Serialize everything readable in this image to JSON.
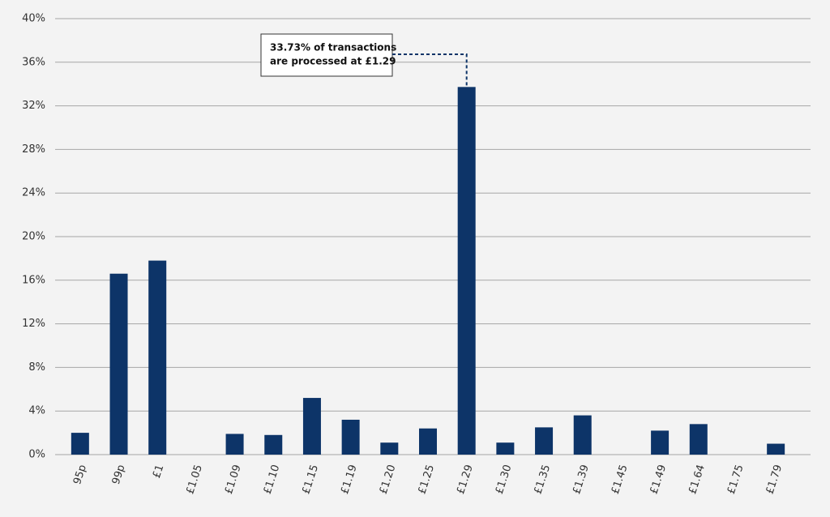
{
  "chart_data": {
    "type": "bar",
    "categories": [
      "95p",
      "99p",
      "£1",
      "£1.05",
      "£1.09",
      "£1.10",
      "£1.15",
      "£1.19",
      "£1.20",
      "£1.25",
      "£1.29",
      "£1.30",
      "£1.35",
      "£1.39",
      "£1.45",
      "£1.49",
      "£1.64",
      "£1.75",
      "£1.79"
    ],
    "values": [
      2.0,
      16.6,
      17.8,
      0,
      1.9,
      1.8,
      5.2,
      3.2,
      1.1,
      2.4,
      33.73,
      1.1,
      2.5,
      3.6,
      0,
      2.2,
      2.8,
      0,
      1.0
    ],
    "color": "#0d3468",
    "ylim": [
      0,
      40
    ],
    "yticks": [
      {
        "value": 0,
        "label": "0%"
      },
      {
        "value": 4,
        "label": "4%"
      },
      {
        "value": 8,
        "label": "8%"
      },
      {
        "value": 12,
        "label": "12%"
      },
      {
        "value": 16,
        "label": "16%"
      },
      {
        "value": 20,
        "label": "20%"
      },
      {
        "value": 24,
        "label": "24%"
      },
      {
        "value": 28,
        "label": "28%"
      },
      {
        "value": 32,
        "label": "32%"
      },
      {
        "value": 36,
        "label": "36%"
      },
      {
        "value": 40,
        "label": "40%"
      }
    ],
    "grid": true,
    "annotation": [
      "33.73% of transactions",
      "are processed at £1.29"
    ]
  }
}
